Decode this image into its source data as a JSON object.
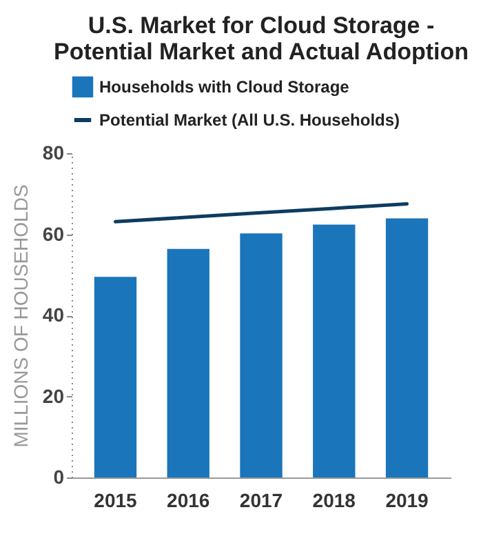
{
  "chart_data": {
    "type": "bar",
    "title": "U.S. Market for Cloud Storage - Potential Market and Actual Adoption",
    "ylabel": "MILLIONS OF HOUSEHOLDS",
    "categories": [
      "2015",
      "2016",
      "2017",
      "2018",
      "2019"
    ],
    "series": [
      {
        "name": "Households with Cloud Storage",
        "color": "#1a75bb",
        "values": [
          49.5,
          56.4,
          60.2,
          62.4,
          63.9
        ]
      },
      {
        "name": "Potential Market (All U.S. Households)",
        "type": "line",
        "color": "#0d3c61",
        "values": [
          63.1,
          64.2,
          65.3,
          66.4,
          67.5
        ]
      }
    ],
    "ylim": [
      0,
      80
    ],
    "yticks": [
      0,
      20,
      40,
      60,
      80
    ],
    "grid": false,
    "legend": "top"
  }
}
